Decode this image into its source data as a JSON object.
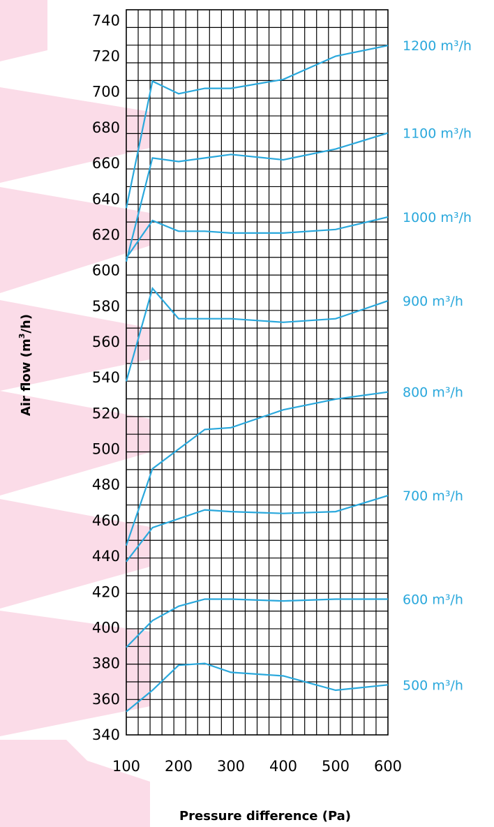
{
  "chart_data": {
    "type": "line",
    "xlabel": "Pressure difference (Pa)",
    "ylabel": "Air flow (m³/h)",
    "ylabel_main": "Air flow (m",
    "ylabel_sup": "3",
    "ylabel_end": "/h)",
    "xlim": [
      100,
      600
    ],
    "ylim": [
      340,
      746
    ],
    "x_ticks": [
      "100",
      "200",
      "300",
      "400",
      "500",
      "600"
    ],
    "x_tick_values": [
      100,
      200,
      300,
      400,
      500,
      600
    ],
    "y_ticks": [
      "340",
      "360",
      "380",
      "400",
      "420",
      "440",
      "460",
      "480",
      "500",
      "520",
      "540",
      "560",
      "580",
      "600",
      "620",
      "640",
      "660",
      "680",
      "700",
      "720",
      "740"
    ],
    "y_tick_values": [
      340,
      360,
      380,
      400,
      420,
      440,
      460,
      480,
      500,
      520,
      540,
      560,
      580,
      600,
      620,
      640,
      660,
      680,
      700,
      720,
      740
    ],
    "grid": true,
    "x": [
      100,
      150,
      200,
      250,
      300,
      400,
      500,
      600
    ],
    "series": [
      {
        "name": "500 m³/h",
        "values": [
          353,
          365,
          379,
          380,
          375,
          373,
          365,
          368
        ]
      },
      {
        "name": "600 m³/h",
        "values": [
          389,
          404,
          412,
          416,
          416,
          415,
          416,
          416
        ]
      },
      {
        "name": "700 m³/h",
        "values": [
          437,
          456,
          461,
          466,
          465,
          464,
          465,
          474
        ]
      },
      {
        "name": "800 m³/h",
        "values": [
          446,
          489,
          500,
          511,
          512,
          522,
          528,
          532
        ]
      },
      {
        "name": "900 m³/h",
        "values": [
          538,
          590,
          573,
          573,
          573,
          571,
          573,
          583
        ]
      },
      {
        "name": "1000 m³/h",
        "values": [
          607,
          628,
          622,
          622,
          621,
          621,
          623,
          630
        ]
      },
      {
        "name": "1100 m³/h",
        "values": [
          605,
          663,
          661,
          663,
          665,
          662,
          668,
          677
        ]
      },
      {
        "name": "1200 m³/h",
        "values": [
          635,
          706,
          699,
          702,
          702,
          707,
          720,
          726
        ]
      }
    ],
    "colors": {
      "series": "#2aa8dc",
      "grid": "#000000",
      "watermark": "#fbdce8",
      "text": "#000000"
    }
  }
}
